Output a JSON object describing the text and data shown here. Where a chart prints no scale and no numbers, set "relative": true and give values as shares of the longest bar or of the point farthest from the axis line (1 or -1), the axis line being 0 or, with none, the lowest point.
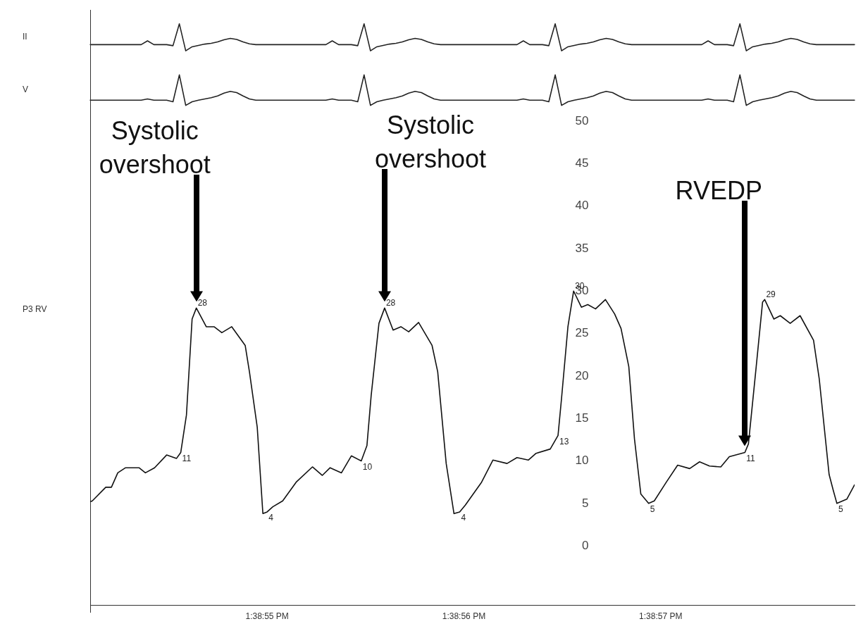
{
  "chart_data": [
    {
      "type": "line",
      "ylabel": "II",
      "relative": true,
      "tick_labels": false,
      "color": "#222222",
      "categories": [
        null,
        null,
        null,
        null,
        null,
        null,
        null,
        null,
        null,
        null,
        null,
        null,
        null,
        null,
        null,
        null,
        null,
        null,
        null,
        null,
        null,
        null,
        null,
        null,
        null,
        null,
        null,
        null,
        null,
        null,
        null,
        null,
        null,
        null,
        null,
        null,
        null,
        null,
        null,
        null,
        null,
        null,
        null,
        null,
        null,
        null,
        null,
        null,
        null,
        null,
        null,
        null,
        null,
        null,
        null,
        null,
        null,
        null,
        null,
        null,
        null,
        null,
        null,
        null,
        null,
        null,
        null,
        null,
        null,
        null,
        null,
        null,
        null,
        null,
        null,
        null,
        null,
        null,
        null,
        null,
        null,
        null,
        null,
        null,
        null,
        null,
        null,
        null,
        null,
        null,
        null,
        null,
        null,
        null,
        null,
        null,
        null,
        null,
        null,
        null,
        null,
        null,
        null,
        null,
        null,
        null,
        null,
        null,
        null,
        null,
        null,
        null,
        null,
        null,
        null,
        null,
        null,
        null,
        null,
        null,
        null
      ],
      "values": [
        0.23,
        0.23,
        0.23,
        0.23,
        0.23,
        0.23,
        0.23,
        0.23,
        0.23,
        0.37,
        0.23,
        0.23,
        0.23,
        0.19,
        1,
        0,
        0.15,
        0.2,
        0.25,
        0.28,
        0.33,
        0.41,
        0.46,
        0.42,
        0.33,
        0.26,
        0.23,
        0.23,
        0.23,
        0.23,
        0.23,
        0.23,
        0.23,
        0.23,
        0.23,
        0.23,
        0.23,
        0.23,
        0.37,
        0.23,
        0.23,
        0.23,
        0.19,
        1,
        0,
        0.15,
        0.2,
        0.25,
        0.28,
        0.33,
        0.41,
        0.46,
        0.42,
        0.33,
        0.26,
        0.23,
        0.23,
        0.23,
        0.23,
        0.23,
        0.23,
        0.23,
        0.23,
        0.23,
        0.23,
        0.23,
        0.23,
        0.23,
        0.37,
        0.23,
        0.23,
        0.23,
        0.19,
        1,
        0,
        0.15,
        0.2,
        0.25,
        0.28,
        0.33,
        0.41,
        0.46,
        0.42,
        0.33,
        0.26,
        0.23,
        0.23,
        0.23,
        0.23,
        0.23,
        0.23,
        0.23,
        0.23,
        0.23,
        0.23,
        0.23,
        0.23,
        0.37,
        0.23,
        0.23,
        0.23,
        0.19,
        1,
        0,
        0.15,
        0.2,
        0.25,
        0.28,
        0.33,
        0.41,
        0.46,
        0.42,
        0.33,
        0.26,
        0.23,
        0.23,
        0.23,
        0.23,
        0.23,
        0.23,
        0.23
      ]
    },
    {
      "type": "line",
      "ylabel": "V",
      "relative": true,
      "tick_labels": false,
      "color": "#222222",
      "categories": [
        null,
        null,
        null,
        null,
        null,
        null,
        null,
        null,
        null,
        null,
        null,
        null,
        null,
        null,
        null,
        null,
        null,
        null,
        null,
        null,
        null,
        null,
        null,
        null,
        null,
        null,
        null,
        null,
        null,
        null,
        null,
        null,
        null,
        null,
        null,
        null,
        null,
        null,
        null,
        null,
        null,
        null,
        null,
        null,
        null,
        null,
        null,
        null,
        null,
        null,
        null,
        null,
        null,
        null,
        null,
        null,
        null,
        null,
        null,
        null,
        null,
        null,
        null,
        null,
        null,
        null,
        null,
        null,
        null,
        null,
        null,
        null,
        null,
        null,
        null,
        null,
        null,
        null,
        null,
        null,
        null,
        null,
        null,
        null,
        null,
        null,
        null,
        null,
        null,
        null,
        null,
        null,
        null,
        null,
        null,
        null,
        null,
        null,
        null,
        null,
        null,
        null,
        null,
        null,
        null,
        null,
        null,
        null,
        null,
        null,
        null,
        null,
        null,
        null,
        null,
        null,
        null,
        null,
        null,
        null,
        null
      ],
      "values": [
        0.17,
        0.17,
        0.17,
        0.17,
        0.17,
        0.17,
        0.17,
        0.17,
        0.17,
        0.21,
        0.17,
        0.17,
        0.17,
        0.12,
        1,
        0,
        0.12,
        0.17,
        0.21,
        0.25,
        0.31,
        0.4,
        0.46,
        0.42,
        0.31,
        0.21,
        0.17,
        0.17,
        0.17,
        0.17,
        0.17,
        0.17,
        0.17,
        0.17,
        0.17,
        0.17,
        0.17,
        0.17,
        0.21,
        0.17,
        0.17,
        0.17,
        0.12,
        1,
        0,
        0.12,
        0.17,
        0.21,
        0.25,
        0.31,
        0.4,
        0.46,
        0.42,
        0.31,
        0.21,
        0.17,
        0.17,
        0.17,
        0.17,
        0.17,
        0.17,
        0.17,
        0.17,
        0.17,
        0.17,
        0.17,
        0.17,
        0.17,
        0.21,
        0.17,
        0.17,
        0.17,
        0.12,
        1,
        0,
        0.12,
        0.17,
        0.21,
        0.25,
        0.31,
        0.4,
        0.46,
        0.42,
        0.31,
        0.21,
        0.17,
        0.17,
        0.17,
        0.17,
        0.17,
        0.17,
        0.17,
        0.17,
        0.17,
        0.17,
        0.17,
        0.17,
        0.21,
        0.17,
        0.17,
        0.17,
        0.12,
        1,
        0,
        0.12,
        0.17,
        0.21,
        0.25,
        0.31,
        0.4,
        0.46,
        0.42,
        0.31,
        0.21,
        0.17,
        0.17,
        0.17,
        0.17,
        0.17,
        0.17,
        0.17
      ]
    },
    {
      "type": "line",
      "ylabel": "P3 RV",
      "xlim": [
        13.648361,
        13.649441
      ],
      "ylim": [
        -7,
        50
      ],
      "yticks": [
        0,
        5,
        10,
        15,
        20,
        25,
        30,
        35,
        40,
        45,
        50
      ],
      "xticks": [
        {
          "value": 13.648611,
          "label": "1:38:55 PM"
        },
        {
          "value": 13.648889,
          "label": "1:38:56 PM"
        },
        {
          "value": 13.649167,
          "label": "1:38:57 PM"
        }
      ],
      "color": "#111111",
      "x": [
        13.648361,
        13.648364,
        13.648383,
        13.648391,
        13.6484,
        13.648411,
        13.64843,
        13.648439,
        13.648452,
        13.648469,
        13.648483,
        13.648489,
        13.648497,
        13.648505,
        13.648511,
        13.648525,
        13.648536,
        13.648547,
        13.648561,
        13.64858,
        13.648586,
        13.648597,
        13.648605,
        13.648611,
        13.648619,
        13.648633,
        13.648652,
        13.648675,
        13.648689,
        13.6487,
        13.648716,
        13.64873,
        13.648744,
        13.648752,
        13.648758,
        13.648769,
        13.648777,
        13.648789,
        13.6488,
        13.648811,
        13.648825,
        13.648844,
        13.648852,
        13.648864,
        13.648875,
        13.648883,
        13.648891,
        13.648914,
        13.64893,
        13.64895,
        13.648964,
        13.64898,
        13.648991,
        13.649011,
        13.649022,
        13.649027,
        13.649036,
        13.649044,
        13.649055,
        13.649064,
        13.649075,
        13.649089,
        13.649102,
        13.649111,
        13.649122,
        13.64913,
        13.649139,
        13.64915,
        13.649158,
        13.649175,
        13.649191,
        13.649208,
        13.649222,
        13.649236,
        13.649252,
        13.649264,
        13.649286,
        13.649291,
        13.649302,
        13.649311,
        13.649314,
        13.649327,
        13.649336,
        13.64935,
        13.649364,
        13.649383,
        13.649391,
        13.649405,
        13.649411,
        13.649416,
        13.64943,
        13.649441
      ],
      "values": [
        5.2,
        5.3,
        6.9,
        6.9,
        8.6,
        9.2,
        9.2,
        8.6,
        9.2,
        10.7,
        10.3,
        11,
        15.4,
        26.7,
        28,
        25.8,
        25.8,
        25.1,
        25.8,
        23.6,
        20.5,
        14.0,
        3.8,
        4,
        4.6,
        5.3,
        7.5,
        9.3,
        8.3,
        9.2,
        8.6,
        10.6,
        10,
        11.8,
        17.7,
        26.2,
        28,
        25.4,
        25.8,
        25.2,
        26.3,
        23.6,
        20.5,
        9.7,
        3.8,
        4,
        4.8,
        7.5,
        10.1,
        9.7,
        10.4,
        10.1,
        10.9,
        11.4,
        13,
        17.4,
        25.8,
        30,
        28.1,
        28.4,
        27.9,
        29.0,
        27.3,
        25.6,
        21.1,
        12.6,
        6.1,
        5,
        5.3,
        7.5,
        9.5,
        9.1,
        9.9,
        9.4,
        9.3,
        10.5,
        11,
        12.0,
        21.1,
        28.7,
        29,
        26.7,
        27.1,
        26.2,
        27.1,
        24.2,
        19.7,
        8.4,
        6.5,
        5,
        5.5,
        7.2
      ],
      "value_labels": [
        null,
        null,
        null,
        null,
        null,
        null,
        null,
        null,
        null,
        null,
        null,
        "11",
        null,
        null,
        "28",
        null,
        null,
        null,
        null,
        null,
        null,
        null,
        null,
        "4",
        null,
        null,
        null,
        null,
        null,
        null,
        null,
        null,
        "10",
        null,
        null,
        null,
        "28",
        null,
        null,
        null,
        null,
        null,
        null,
        null,
        null,
        "4",
        null,
        null,
        null,
        null,
        null,
        null,
        null,
        null,
        "13",
        null,
        null,
        "30",
        null,
        null,
        null,
        null,
        null,
        null,
        null,
        null,
        null,
        "5",
        null,
        null,
        null,
        null,
        null,
        null,
        null,
        null,
        "11",
        null,
        null,
        null,
        "29",
        null,
        null,
        null,
        null,
        null,
        null,
        null,
        null,
        "5",
        null,
        null
      ],
      "annotations": [
        "Systolic overshoot",
        "Systolic overshoot",
        "RVEDP"
      ]
    }
  ]
}
